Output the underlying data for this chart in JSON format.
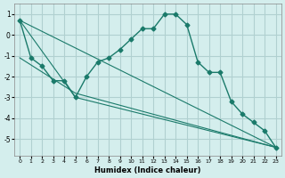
{
  "xlabel": "Humidex (Indice chaleur)",
  "ylabel": "",
  "bg_color": "#d4eeed",
  "grid_color": "#b0d0d0",
  "line_color": "#1a7a6a",
  "series": [
    {
      "x": [
        0,
        1,
        2,
        3,
        4,
        5,
        6,
        7,
        8,
        9,
        10,
        11,
        12,
        13,
        14,
        15,
        16,
        17,
        18,
        19,
        20,
        21,
        22,
        23
      ],
      "y": [
        0.7,
        -1.1,
        -1.5,
        -2.2,
        -2.2,
        -3.0,
        -2.0,
        -1.3,
        -1.1,
        -0.7,
        -0.2,
        0.3,
        0.3,
        1.0,
        1.0,
        0.5,
        -1.3,
        -1.8,
        -1.8,
        -3.2,
        -3.8,
        -4.2,
        -4.6,
        -5.4
      ]
    },
    {
      "x": [
        0,
        23
      ],
      "y": [
        0.7,
        -5.4
      ]
    },
    {
      "x": [
        0,
        5,
        23
      ],
      "y": [
        0.7,
        -3.0,
        -5.4
      ]
    },
    {
      "x": [
        0,
        5,
        23
      ],
      "y": [
        -1.1,
        -2.8,
        -5.4
      ]
    }
  ],
  "xlim": [
    -0.5,
    23.5
  ],
  "ylim": [
    -5.8,
    1.5
  ],
  "xticks": [
    0,
    1,
    2,
    3,
    4,
    5,
    6,
    7,
    8,
    9,
    10,
    11,
    12,
    13,
    14,
    15,
    16,
    17,
    18,
    19,
    20,
    21,
    22,
    23
  ],
  "yticks": [
    -5,
    -4,
    -3,
    -2,
    -1,
    0,
    1
  ]
}
